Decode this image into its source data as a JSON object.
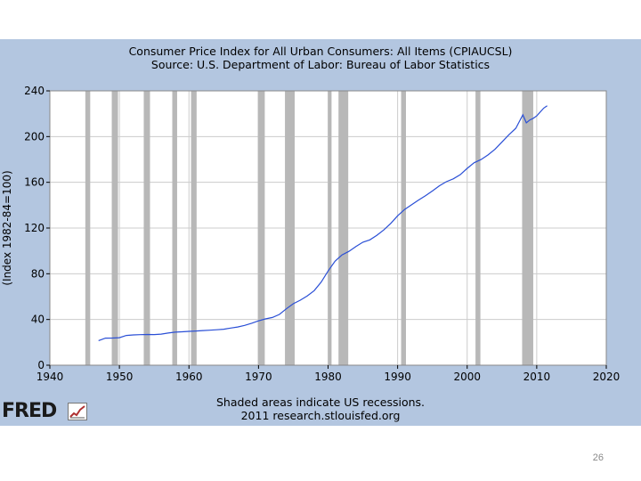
{
  "chart_data": {
    "type": "line",
    "title": "Consumer Price Index for All Urban Consumers: All Items (CPIAUCSL)",
    "subtitle": "Source: U.S. Department of Labor: Bureau of Labor Statistics",
    "xlabel": "",
    "ylabel": "(Index 1982-84=100)",
    "xlim": [
      1940,
      2020
    ],
    "ylim": [
      0,
      240
    ],
    "x_ticks": [
      1940,
      1950,
      1960,
      1970,
      1980,
      1990,
      2000,
      2010,
      2020
    ],
    "y_ticks": [
      0,
      40,
      80,
      120,
      160,
      200,
      240
    ],
    "grid": true,
    "series": [
      {
        "name": "CPIAUCSL",
        "color": "#2a4fd6",
        "x": [
          1947,
          1948,
          1949,
          1950,
          1951,
          1952,
          1953,
          1954,
          1955,
          1956,
          1957,
          1958,
          1959,
          1960,
          1961,
          1962,
          1963,
          1964,
          1965,
          1966,
          1967,
          1968,
          1969,
          1970,
          1971,
          1972,
          1973,
          1974,
          1975,
          1976,
          1977,
          1978,
          1979,
          1980,
          1981,
          1982,
          1983,
          1984,
          1985,
          1986,
          1987,
          1988,
          1989,
          1990,
          1991,
          1992,
          1993,
          1994,
          1995,
          1996,
          1997,
          1998,
          1999,
          2000,
          2001,
          2002,
          2003,
          2004,
          2005,
          2006,
          2007,
          2008,
          2008.5,
          2009,
          2009.5,
          2010,
          2011,
          2011.5
        ],
        "values": [
          21.5,
          23.7,
          23.8,
          24.1,
          26.0,
          26.5,
          26.7,
          26.9,
          26.8,
          27.2,
          28.1,
          28.9,
          29.2,
          29.6,
          29.9,
          30.3,
          30.6,
          31.0,
          31.5,
          32.5,
          33.4,
          34.8,
          36.7,
          38.8,
          40.5,
          41.8,
          44.4,
          49.3,
          53.8,
          56.9,
          60.6,
          65.2,
          72.6,
          82.4,
          90.9,
          96.5,
          99.6,
          103.9,
          107.6,
          109.6,
          113.6,
          118.3,
          124.0,
          130.7,
          136.2,
          140.3,
          144.5,
          148.2,
          152.4,
          156.9,
          160.5,
          163.0,
          166.6,
          172.2,
          177.1,
          179.9,
          184.0,
          188.9,
          195.3,
          201.6,
          207.3,
          219.0,
          212.0,
          214.5,
          216.0,
          218.1,
          224.9,
          227.0
        ]
      }
    ],
    "recessions": [
      [
        1945.1,
        1945.8
      ],
      [
        1948.9,
        1949.8
      ],
      [
        1953.5,
        1954.4
      ],
      [
        1957.6,
        1958.3
      ],
      [
        1960.3,
        1961.1
      ],
      [
        1969.9,
        1970.9
      ],
      [
        1973.8,
        1975.2
      ],
      [
        1980.0,
        1980.5
      ],
      [
        1981.5,
        1982.9
      ],
      [
        1990.5,
        1991.2
      ],
      [
        2001.2,
        2001.9
      ],
      [
        2007.9,
        2009.5
      ]
    ]
  },
  "footer": {
    "note": "Shaded areas indicate US recessions.",
    "credit": "2011 research.stlouisfed.org"
  },
  "logo": {
    "text": "FRED"
  },
  "page_number": "26",
  "colors": {
    "panel_background": "#b3c6e0",
    "plot_background": "#ffffff",
    "recession_bar": "#b8b8b8",
    "grid": "#cccccc",
    "line": "#2a4fd6"
  }
}
